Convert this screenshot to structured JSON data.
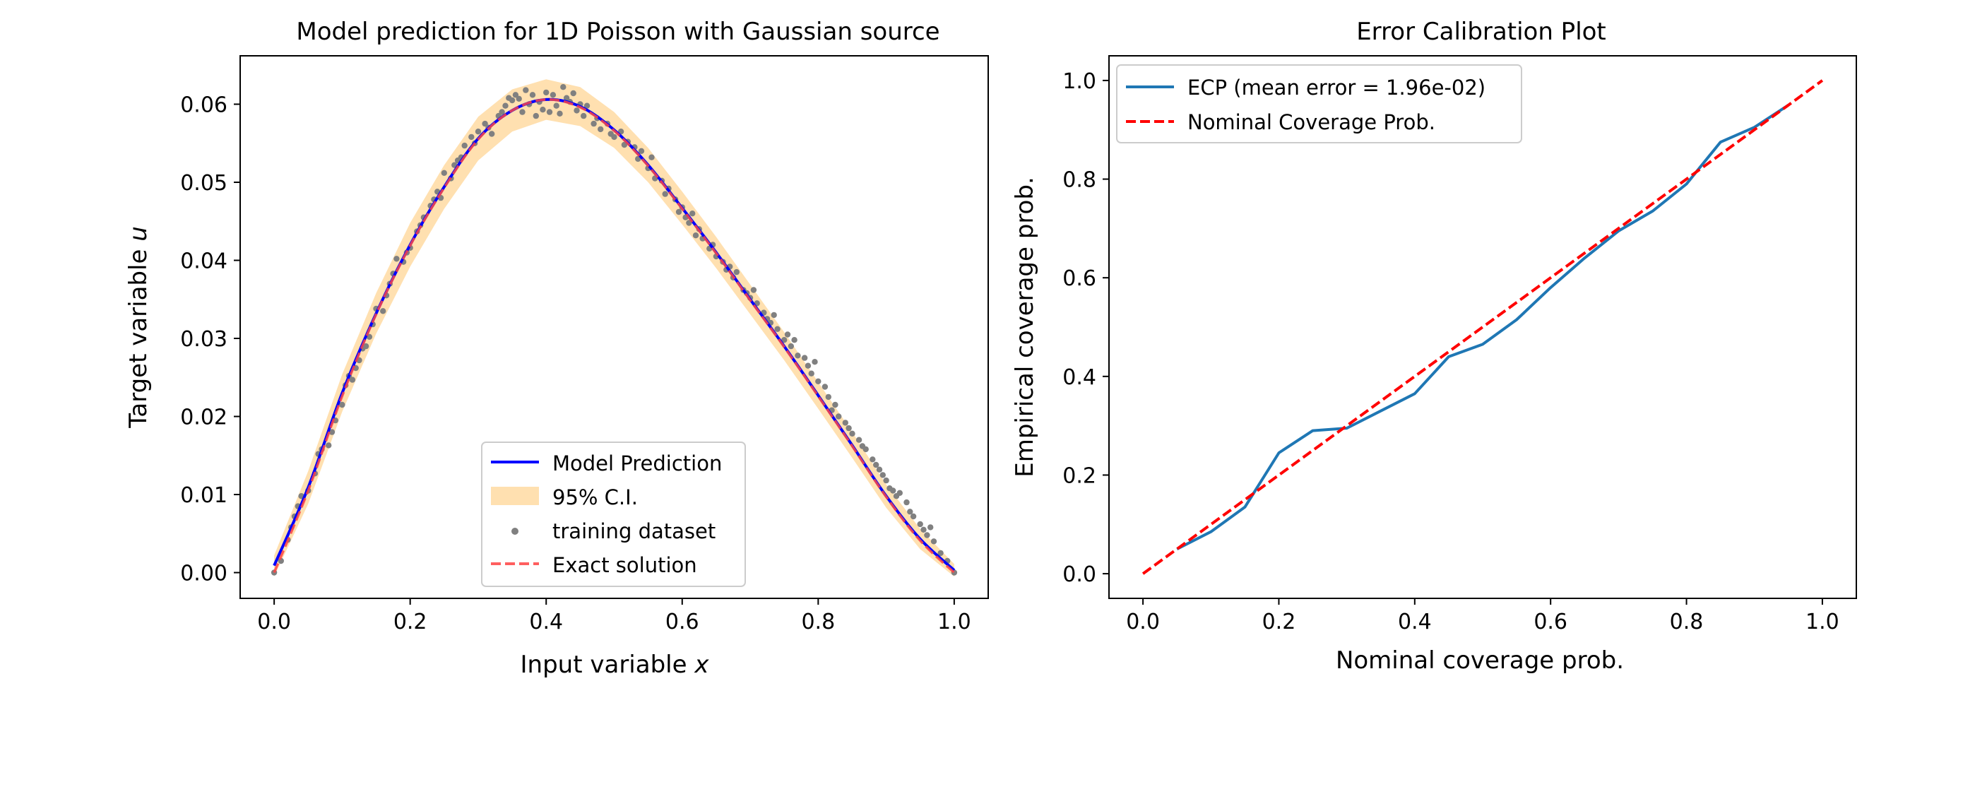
{
  "chart_data": [
    {
      "type": "line",
      "title": "Model prediction for 1D Poisson with Gaussian source",
      "xlabel": "Input variable",
      "xlabel_var": "x",
      "ylabel": "Target variable",
      "ylabel_var": "u",
      "xlim": [
        -0.05,
        1.05
      ],
      "ylim": [
        -0.0033,
        0.0662
      ],
      "xticks": [
        0.0,
        0.2,
        0.4,
        0.6,
        0.8,
        1.0
      ],
      "xtick_labels": [
        "0.0",
        "0.2",
        "0.4",
        "0.6",
        "0.8",
        "1.0"
      ],
      "yticks": [
        0.0,
        0.01,
        0.02,
        0.03,
        0.04,
        0.05,
        0.06
      ],
      "ytick_labels": [
        "0.00",
        "0.01",
        "0.02",
        "0.03",
        "0.04",
        "0.05",
        "0.06"
      ],
      "grid": false,
      "legend_position": "lower-center",
      "legend": [
        "Model Prediction",
        "95% C.I.",
        "training dataset",
        "Exact solution"
      ],
      "x": [
        0.0,
        0.05,
        0.1,
        0.15,
        0.2,
        0.25,
        0.3,
        0.35,
        0.4,
        0.45,
        0.5,
        0.55,
        0.6,
        0.65,
        0.7,
        0.75,
        0.8,
        0.85,
        0.9,
        0.95,
        1.0
      ],
      "series": [
        {
          "name": "Model Prediction",
          "color": "#0000ff",
          "style": "solid",
          "values": [
            0.0009,
            0.0109,
            0.023,
            0.0332,
            0.042,
            0.0494,
            0.0556,
            0.0592,
            0.0606,
            0.0597,
            0.0567,
            0.0522,
            0.0467,
            0.041,
            0.035,
            0.029,
            0.0227,
            0.0163,
            0.0098,
            0.0043,
            0.0003
          ]
        },
        {
          "name": "Exact solution",
          "color": "#ff4444",
          "style": "dashed",
          "values": [
            0.0,
            0.0105,
            0.0226,
            0.0331,
            0.0419,
            0.0493,
            0.0555,
            0.0592,
            0.0606,
            0.0596,
            0.0566,
            0.0521,
            0.0466,
            0.0409,
            0.0349,
            0.0289,
            0.0226,
            0.0162,
            0.0097,
            0.0041,
            0.0
          ]
        },
        {
          "name": "95% C.I.",
          "color": "#ffe0b0",
          "style": "band",
          "lower": [
            -0.0005,
            0.0088,
            0.0206,
            0.0306,
            0.0392,
            0.0466,
            0.0528,
            0.0565,
            0.058,
            0.0572,
            0.0544,
            0.05,
            0.0446,
            0.039,
            0.0331,
            0.0272,
            0.021,
            0.0147,
            0.0083,
            0.003,
            -0.0005
          ],
          "upper": [
            0.0022,
            0.013,
            0.0254,
            0.0358,
            0.0448,
            0.0522,
            0.0584,
            0.0619,
            0.0632,
            0.0622,
            0.059,
            0.0544,
            0.0488,
            0.043,
            0.0369,
            0.0308,
            0.0244,
            0.018,
            0.0113,
            0.0056,
            0.0011
          ]
        }
      ],
      "scatter": {
        "name": "training dataset",
        "color": "#808080",
        "points": [
          [
            0.0,
            0.0
          ],
          [
            0.01,
            0.0015
          ],
          [
            0.02,
            0.0042
          ],
          [
            0.025,
            0.0058
          ],
          [
            0.03,
            0.0072
          ],
          [
            0.035,
            0.0085
          ],
          [
            0.04,
            0.0098
          ],
          [
            0.05,
            0.0105
          ],
          [
            0.06,
            0.0127
          ],
          [
            0.065,
            0.0152
          ],
          [
            0.07,
            0.0158
          ],
          [
            0.08,
            0.0163
          ],
          [
            0.085,
            0.018
          ],
          [
            0.09,
            0.0195
          ],
          [
            0.1,
            0.0215
          ],
          [
            0.105,
            0.024
          ],
          [
            0.11,
            0.0252
          ],
          [
            0.115,
            0.0247
          ],
          [
            0.12,
            0.0262
          ],
          [
            0.125,
            0.0272
          ],
          [
            0.13,
            0.0287
          ],
          [
            0.135,
            0.029
          ],
          [
            0.14,
            0.0302
          ],
          [
            0.145,
            0.0318
          ],
          [
            0.15,
            0.0338
          ],
          [
            0.16,
            0.0335
          ],
          [
            0.165,
            0.0355
          ],
          [
            0.17,
            0.037
          ],
          [
            0.175,
            0.0383
          ],
          [
            0.18,
            0.0402
          ],
          [
            0.19,
            0.0398
          ],
          [
            0.195,
            0.041
          ],
          [
            0.2,
            0.0416
          ],
          [
            0.21,
            0.0437
          ],
          [
            0.215,
            0.0445
          ],
          [
            0.22,
            0.0455
          ],
          [
            0.23,
            0.047
          ],
          [
            0.235,
            0.0478
          ],
          [
            0.24,
            0.0488
          ],
          [
            0.245,
            0.048
          ],
          [
            0.25,
            0.0512
          ],
          [
            0.26,
            0.0505
          ],
          [
            0.265,
            0.0522
          ],
          [
            0.27,
            0.0528
          ],
          [
            0.275,
            0.0532
          ],
          [
            0.28,
            0.0547
          ],
          [
            0.29,
            0.0558
          ],
          [
            0.295,
            0.055
          ],
          [
            0.3,
            0.0565
          ],
          [
            0.31,
            0.0575
          ],
          [
            0.315,
            0.057
          ],
          [
            0.32,
            0.0562
          ],
          [
            0.33,
            0.0585
          ],
          [
            0.335,
            0.059
          ],
          [
            0.34,
            0.0598
          ],
          [
            0.345,
            0.0608
          ],
          [
            0.35,
            0.0605
          ],
          [
            0.355,
            0.0612
          ],
          [
            0.36,
            0.0607
          ],
          [
            0.365,
            0.059
          ],
          [
            0.37,
            0.0618
          ],
          [
            0.375,
            0.06
          ],
          [
            0.38,
            0.0612
          ],
          [
            0.385,
            0.0585
          ],
          [
            0.39,
            0.0603
          ],
          [
            0.395,
            0.0593
          ],
          [
            0.4,
            0.0615
          ],
          [
            0.405,
            0.059
          ],
          [
            0.41,
            0.0612
          ],
          [
            0.415,
            0.0598
          ],
          [
            0.42,
            0.0588
          ],
          [
            0.425,
            0.0622
          ],
          [
            0.43,
            0.0608
          ],
          [
            0.435,
            0.0603
          ],
          [
            0.44,
            0.0614
          ],
          [
            0.445,
            0.0592
          ],
          [
            0.45,
            0.06
          ],
          [
            0.455,
            0.0585
          ],
          [
            0.46,
            0.0598
          ],
          [
            0.47,
            0.0575
          ],
          [
            0.475,
            0.0582
          ],
          [
            0.48,
            0.0568
          ],
          [
            0.49,
            0.0575
          ],
          [
            0.495,
            0.0562
          ],
          [
            0.5,
            0.0558
          ],
          [
            0.51,
            0.0565
          ],
          [
            0.515,
            0.0548
          ],
          [
            0.52,
            0.0552
          ],
          [
            0.53,
            0.0545
          ],
          [
            0.535,
            0.053
          ],
          [
            0.54,
            0.054
          ],
          [
            0.55,
            0.0518
          ],
          [
            0.555,
            0.0532
          ],
          [
            0.56,
            0.0505
          ],
          [
            0.57,
            0.0502
          ],
          [
            0.575,
            0.0485
          ],
          [
            0.58,
            0.0492
          ],
          [
            0.59,
            0.0478
          ],
          [
            0.595,
            0.0462
          ],
          [
            0.6,
            0.0468
          ],
          [
            0.605,
            0.0455
          ],
          [
            0.61,
            0.0448
          ],
          [
            0.615,
            0.046
          ],
          [
            0.62,
            0.0432
          ],
          [
            0.625,
            0.044
          ],
          [
            0.63,
            0.0428
          ],
          [
            0.64,
            0.0415
          ],
          [
            0.645,
            0.042
          ],
          [
            0.65,
            0.0405
          ],
          [
            0.66,
            0.0398
          ],
          [
            0.665,
            0.0388
          ],
          [
            0.67,
            0.0392
          ],
          [
            0.675,
            0.0378
          ],
          [
            0.68,
            0.0385
          ],
          [
            0.69,
            0.0362
          ],
          [
            0.695,
            0.0358
          ],
          [
            0.7,
            0.0352
          ],
          [
            0.705,
            0.0362
          ],
          [
            0.71,
            0.0345
          ],
          [
            0.72,
            0.0333
          ],
          [
            0.725,
            0.0325
          ],
          [
            0.73,
            0.032
          ],
          [
            0.735,
            0.033
          ],
          [
            0.74,
            0.0312
          ],
          [
            0.75,
            0.0298
          ],
          [
            0.755,
            0.0305
          ],
          [
            0.76,
            0.029
          ],
          [
            0.765,
            0.0298
          ],
          [
            0.77,
            0.0278
          ],
          [
            0.78,
            0.0275
          ],
          [
            0.785,
            0.0265
          ],
          [
            0.79,
            0.0255
          ],
          [
            0.795,
            0.027
          ],
          [
            0.8,
            0.0245
          ],
          [
            0.81,
            0.0238
          ],
          [
            0.815,
            0.0225
          ],
          [
            0.82,
            0.0208
          ],
          [
            0.825,
            0.0215
          ],
          [
            0.83,
            0.02
          ],
          [
            0.84,
            0.0192
          ],
          [
            0.845,
            0.0185
          ],
          [
            0.85,
            0.0178
          ],
          [
            0.86,
            0.017
          ],
          [
            0.865,
            0.0162
          ],
          [
            0.87,
            0.0158
          ],
          [
            0.88,
            0.0145
          ],
          [
            0.885,
            0.0138
          ],
          [
            0.89,
            0.0132
          ],
          [
            0.895,
            0.0125
          ],
          [
            0.9,
            0.0118
          ],
          [
            0.905,
            0.0108
          ],
          [
            0.91,
            0.0105
          ],
          [
            0.915,
            0.0098
          ],
          [
            0.92,
            0.0102
          ],
          [
            0.93,
            0.009
          ],
          [
            0.935,
            0.0078
          ],
          [
            0.94,
            0.0072
          ],
          [
            0.95,
            0.0062
          ],
          [
            0.955,
            0.0055
          ],
          [
            0.96,
            0.0048
          ],
          [
            0.965,
            0.0058
          ],
          [
            0.97,
            0.004
          ],
          [
            0.98,
            0.0025
          ],
          [
            0.99,
            0.0015
          ],
          [
            1.0,
            0.0
          ]
        ]
      }
    },
    {
      "type": "line",
      "title": "Error Calibration Plot",
      "xlabel": "Nominal coverage prob.",
      "ylabel": "Empirical coverage prob.",
      "xlim": [
        -0.05,
        1.05
      ],
      "ylim": [
        -0.05,
        1.05
      ],
      "xticks": [
        0.0,
        0.2,
        0.4,
        0.6,
        0.8,
        1.0
      ],
      "xtick_labels": [
        "0.0",
        "0.2",
        "0.4",
        "0.6",
        "0.8",
        "1.0"
      ],
      "yticks": [
        0.0,
        0.2,
        0.4,
        0.6,
        0.8,
        1.0
      ],
      "ytick_labels": [
        "0.0",
        "0.2",
        "0.4",
        "0.6",
        "0.8",
        "1.0"
      ],
      "grid": false,
      "legend_position": "top-left",
      "legend": [
        "ECP (mean error = 1.96e-02)",
        "Nominal Coverage Prob."
      ],
      "series": [
        {
          "name": "ECP (mean error = 1.96e-02)",
          "color": "#1f77b4",
          "style": "solid",
          "x": [
            0.05,
            0.1,
            0.15,
            0.2,
            0.25,
            0.3,
            0.35,
            0.4,
            0.45,
            0.5,
            0.55,
            0.6,
            0.65,
            0.7,
            0.75,
            0.8,
            0.85,
            0.9,
            0.95
          ],
          "y": [
            0.05,
            0.085,
            0.135,
            0.245,
            0.29,
            0.295,
            0.33,
            0.365,
            0.44,
            0.465,
            0.515,
            0.58,
            0.64,
            0.695,
            0.735,
            0.79,
            0.875,
            0.905,
            0.95
          ]
        },
        {
          "name": "Nominal Coverage Prob.",
          "color": "#ff0000",
          "style": "dashed",
          "x": [
            0.0,
            1.0
          ],
          "y": [
            0.0,
            1.0
          ]
        }
      ]
    }
  ]
}
